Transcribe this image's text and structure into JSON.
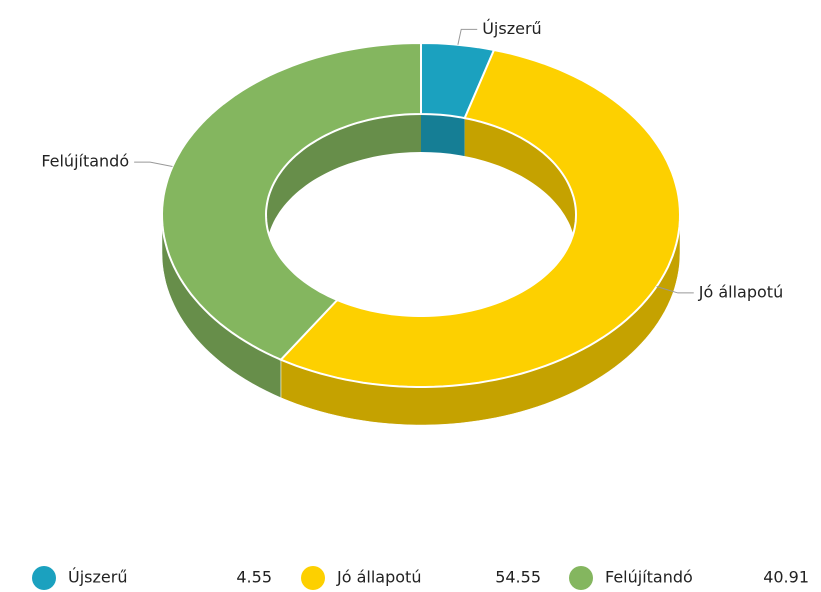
{
  "chart_data": {
    "type": "donut3d",
    "categories": [
      "Újszerű",
      "Jó állapotú",
      "Felújítandó"
    ],
    "values": [
      4.55,
      54.55,
      40.91
    ],
    "colors": [
      "#1ba1bf",
      "#fdd000",
      "#84b65f"
    ],
    "legend": "bottom"
  }
}
